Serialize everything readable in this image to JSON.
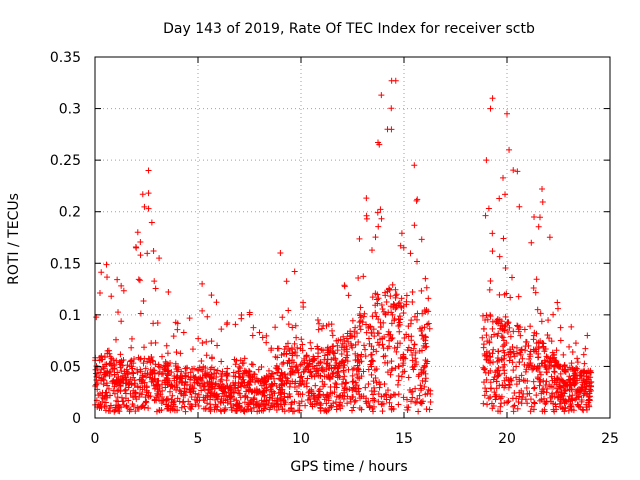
{
  "chart_data": {
    "type": "scatter",
    "title": "Day 143 of 2019, Rate Of TEC Index for receiver sctb",
    "xlabel": "GPS time / hours",
    "ylabel": "ROTI / TECUs",
    "xlim": [
      0,
      25
    ],
    "ylim": [
      0,
      0.35
    ],
    "xticks": [
      0,
      5,
      10,
      15,
      20,
      25
    ],
    "xtick_labels": [
      "0",
      "5",
      "10",
      "15",
      "20",
      "25"
    ],
    "yticks": [
      0,
      0.05,
      0.1,
      0.15,
      0.2,
      0.25,
      0.3,
      0.35
    ],
    "ytick_labels": [
      "0",
      "0.05",
      "0.1",
      "0.15",
      "0.2",
      "0.25",
      "0.3",
      "0.35"
    ],
    "grid": true,
    "marker": "+",
    "series": [
      {
        "name": "ROTI",
        "color": "#ff0000",
        "data_gaps_hours": [
          [
            16.3,
            18.8
          ]
        ],
        "envelope_hourly": [
          {
            "hour": 0.5,
            "typical": 0.035,
            "max": 0.15
          },
          {
            "hour": 1.5,
            "typical": 0.03,
            "max": 0.13
          },
          {
            "hour": 2.5,
            "typical": 0.035,
            "max": 0.24
          },
          {
            "hour": 3.5,
            "typical": 0.03,
            "max": 0.13
          },
          {
            "hour": 4.5,
            "typical": 0.028,
            "max": 0.1
          },
          {
            "hour": 5.5,
            "typical": 0.028,
            "max": 0.13
          },
          {
            "hour": 6.5,
            "typical": 0.025,
            "max": 0.09
          },
          {
            "hour": 7.5,
            "typical": 0.025,
            "max": 0.11
          },
          {
            "hour": 8.5,
            "typical": 0.022,
            "max": 0.08
          },
          {
            "hour": 9.5,
            "typical": 0.045,
            "max": 0.16
          },
          {
            "hour": 10.5,
            "typical": 0.04,
            "max": 0.11
          },
          {
            "hour": 11.5,
            "typical": 0.04,
            "max": 0.1
          },
          {
            "hour": 12.5,
            "typical": 0.055,
            "max": 0.17
          },
          {
            "hour": 13.5,
            "typical": 0.07,
            "max": 0.24
          },
          {
            "hour": 14.2,
            "typical": 0.08,
            "max": 0.33
          },
          {
            "hour": 15.0,
            "typical": 0.07,
            "max": 0.24
          },
          {
            "hour": 15.8,
            "typical": 0.065,
            "max": 0.22
          },
          {
            "hour": 19.0,
            "typical": 0.06,
            "max": 0.31
          },
          {
            "hour": 20.0,
            "typical": 0.055,
            "max": 0.3
          },
          {
            "hour": 21.0,
            "typical": 0.05,
            "max": 0.19
          },
          {
            "hour": 21.8,
            "typical": 0.045,
            "max": 0.22
          },
          {
            "hour": 22.5,
            "typical": 0.03,
            "max": 0.11
          },
          {
            "hour": 23.5,
            "typical": 0.025,
            "max": 0.08
          }
        ],
        "highlighted_points": [
          {
            "x": 2.6,
            "y": 0.24
          },
          {
            "x": 2.6,
            "y": 0.218
          },
          {
            "x": 2.6,
            "y": 0.203
          },
          {
            "x": 2.0,
            "y": 0.165
          },
          {
            "x": 5.2,
            "y": 0.13
          },
          {
            "x": 9.0,
            "y": 0.16
          },
          {
            "x": 14.4,
            "y": 0.327
          },
          {
            "x": 14.6,
            "y": 0.327
          },
          {
            "x": 13.9,
            "y": 0.313
          },
          {
            "x": 14.2,
            "y": 0.28
          },
          {
            "x": 13.8,
            "y": 0.265
          },
          {
            "x": 15.5,
            "y": 0.245
          },
          {
            "x": 19.3,
            "y": 0.31
          },
          {
            "x": 19.2,
            "y": 0.3
          },
          {
            "x": 20.0,
            "y": 0.295
          },
          {
            "x": 20.1,
            "y": 0.26
          },
          {
            "x": 19.0,
            "y": 0.25
          },
          {
            "x": 21.7,
            "y": 0.222
          },
          {
            "x": 23.9,
            "y": 0.08
          }
        ]
      }
    ]
  }
}
